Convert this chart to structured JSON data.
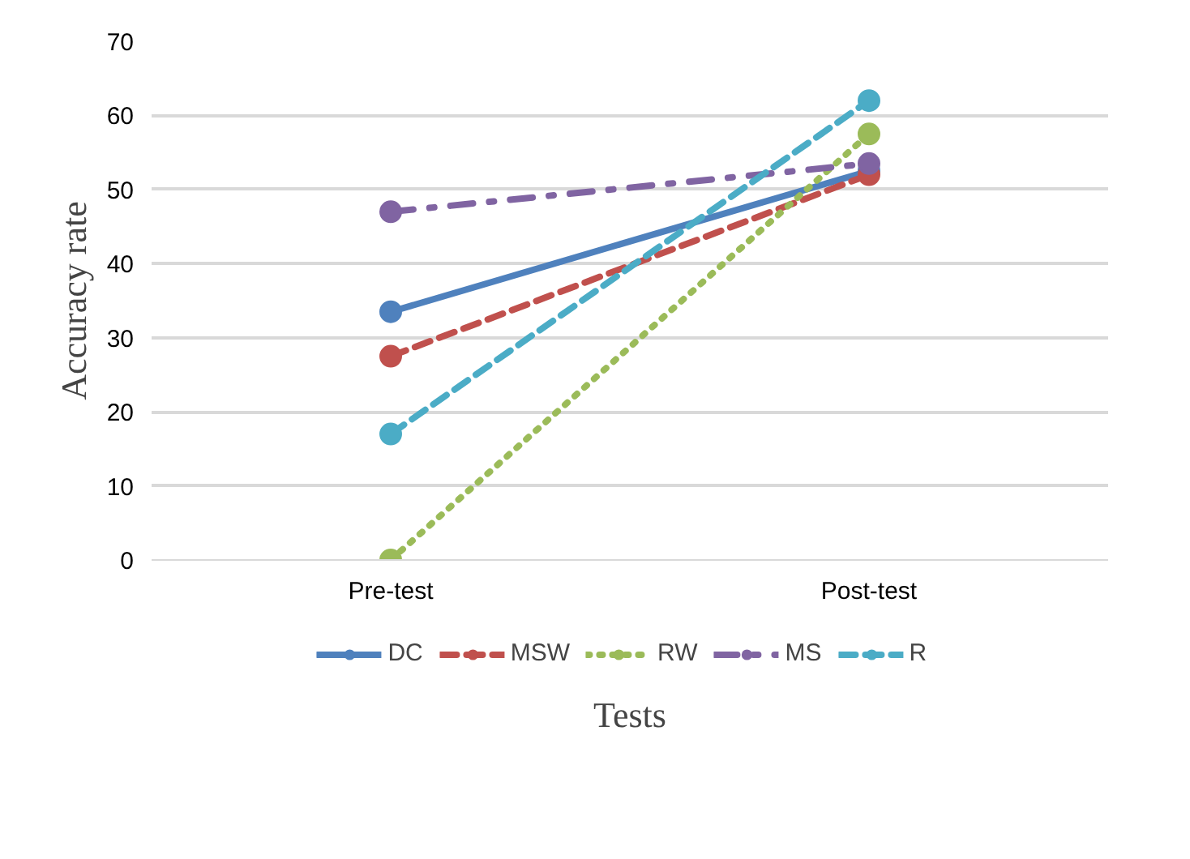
{
  "chart_data": {
    "type": "line",
    "xlabel": "Tests",
    "ylabel": "Accuracy rate",
    "categories": [
      "Pre-test",
      "Post-test"
    ],
    "series": [
      {
        "name": "DC",
        "color": "#4f81bd",
        "values": [
          33.5,
          52.5
        ],
        "line_style": "solid"
      },
      {
        "name": "MSW",
        "color": "#c0504d",
        "values": [
          27.5,
          52
        ],
        "line_style": "dashed"
      },
      {
        "name": "RW",
        "color": "#9bbb59",
        "values": [
          0,
          57.5
        ],
        "line_style": "dotted"
      },
      {
        "name": "MS",
        "color": "#8064a2",
        "values": [
          47,
          53.5
        ],
        "line_style": "dashdot"
      },
      {
        "name": "R",
        "color": "#4bacc6",
        "values": [
          17,
          62
        ],
        "line_style": "dashed"
      }
    ],
    "ylim": [
      0,
      70
    ],
    "yticks": [
      0,
      10,
      20,
      30,
      40,
      50,
      60,
      70
    ],
    "grid": "y",
    "legend": "bottom",
    "marker": "circle"
  }
}
